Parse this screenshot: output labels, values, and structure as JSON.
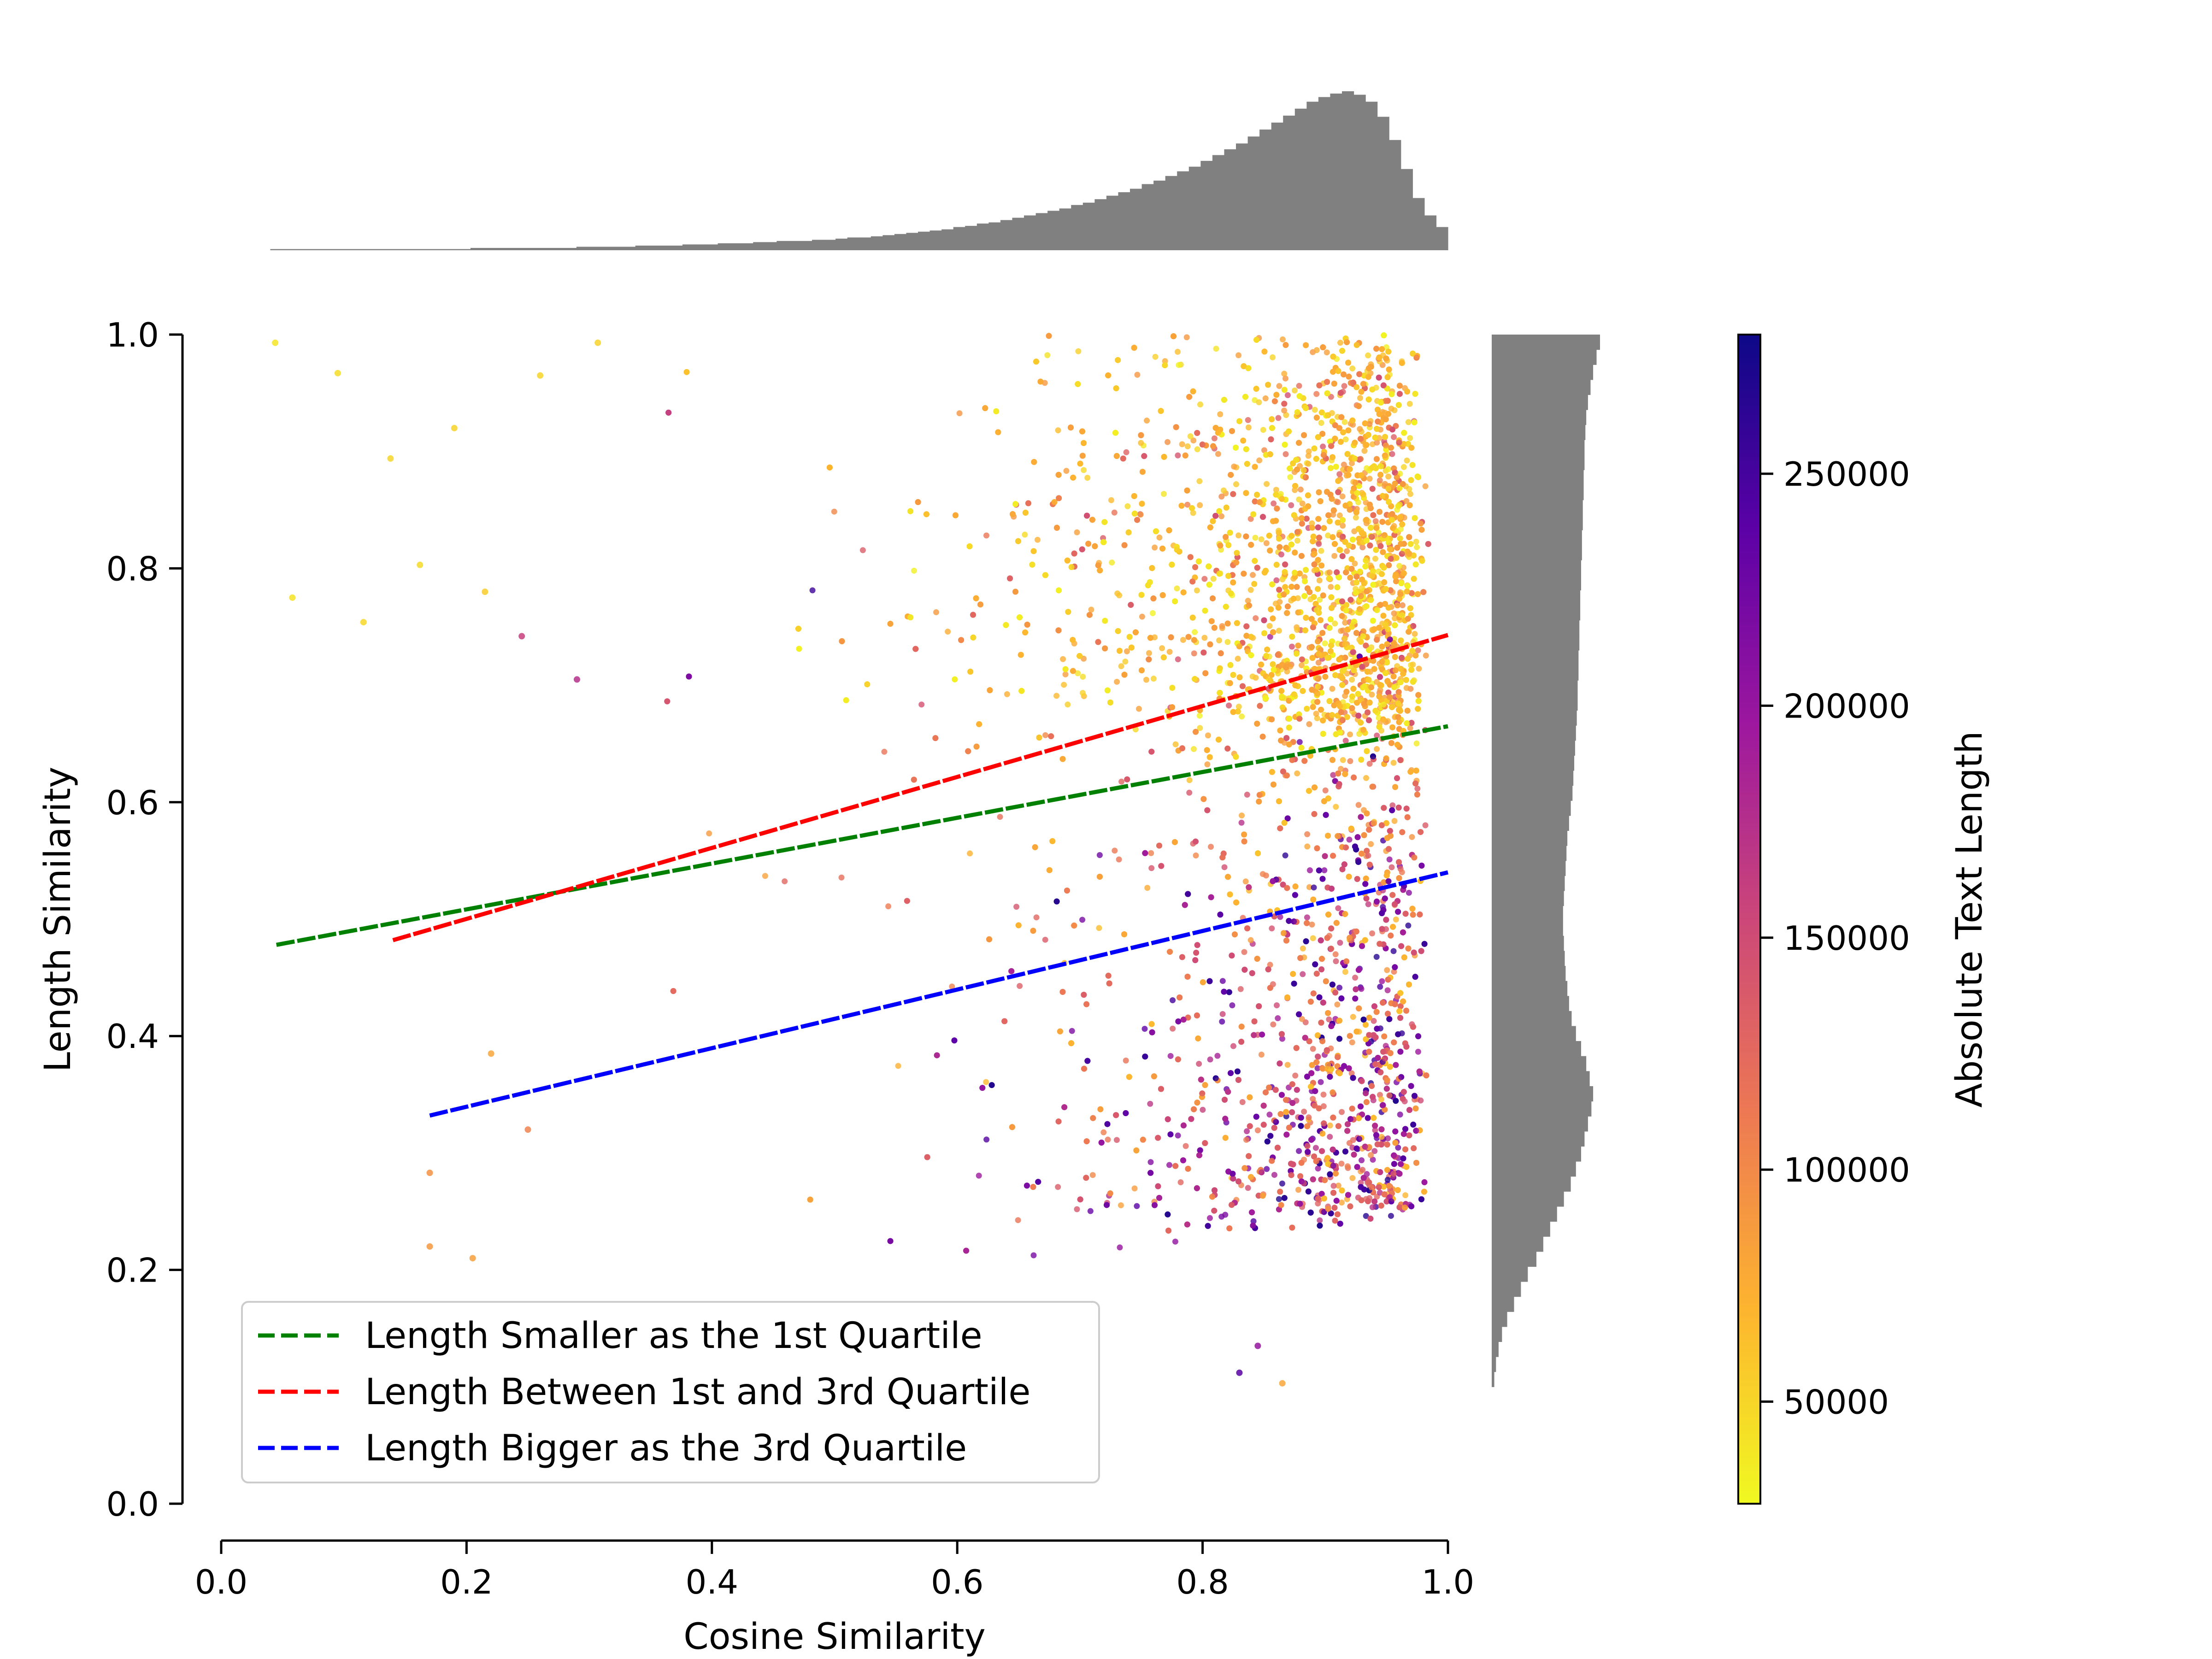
{
  "chart_data": {
    "type": "scatter",
    "title": "",
    "xlabel": "Cosine Similarity",
    "ylabel": "Length Similarity",
    "xlim": [
      0.0,
      1.0
    ],
    "ylim": [
      0.0,
      1.0
    ],
    "x_ticks": [
      "0.0",
      "0.2",
      "0.4",
      "0.6",
      "0.8",
      "1.0"
    ],
    "y_ticks": [
      "0.0",
      "0.2",
      "0.4",
      "0.6",
      "0.8",
      "1.0"
    ],
    "grid": false,
    "legend_position": "lower-left",
    "colorbar": {
      "label": "Absolute Text Length",
      "colormap": "plasma (reversed)",
      "range": [
        28000,
        280000
      ],
      "ticks": [
        50000,
        100000,
        150000,
        200000,
        250000
      ],
      "tick_labels": [
        "50000",
        "100000",
        "150000",
        "200000",
        "250000"
      ],
      "stops": [
        "#f0f921",
        "#fdb42f",
        "#ed7953",
        "#cc4778",
        "#9c179e",
        "#5c01a6",
        "#0d0887"
      ]
    },
    "series": [
      {
        "name": "Length Smaller as the 1st Quartile",
        "color": "#008000",
        "style": "dashed",
        "x": [
          0.045,
          1.0
        ],
        "y": [
          0.478,
          0.665
        ]
      },
      {
        "name": "Length Between 1st and 3rd Quartile",
        "color": "#ff0000",
        "style": "dashed",
        "x": [
          0.14,
          1.0
        ],
        "y": [
          0.482,
          0.743
        ]
      },
      {
        "name": "Length Bigger as the 3rd Quartile",
        "color": "#0000ff",
        "style": "dashed",
        "x": [
          0.17,
          1.0
        ],
        "y": [
          0.332,
          0.54
        ]
      }
    ],
    "scatter_sample": [
      {
        "x": 0.044,
        "y": 0.993,
        "len": 40000
      },
      {
        "x": 0.058,
        "y": 0.775,
        "len": 42000
      },
      {
        "x": 0.095,
        "y": 0.967,
        "len": 45000
      },
      {
        "x": 0.116,
        "y": 0.754,
        "len": 48000
      },
      {
        "x": 0.138,
        "y": 0.894,
        "len": 50000
      },
      {
        "x": 0.162,
        "y": 0.803,
        "len": 46000
      },
      {
        "x": 0.19,
        "y": 0.92,
        "len": 52000
      },
      {
        "x": 0.215,
        "y": 0.78,
        "len": 55000
      },
      {
        "x": 0.245,
        "y": 0.742,
        "len": 160000
      },
      {
        "x": 0.26,
        "y": 0.965,
        "len": 50000
      },
      {
        "x": 0.29,
        "y": 0.705,
        "len": 175000
      },
      {
        "x": 0.307,
        "y": 0.993,
        "len": 52000
      },
      {
        "x": 0.17,
        "y": 0.283,
        "len": 95000
      },
      {
        "x": 0.17,
        "y": 0.22,
        "len": 90000
      },
      {
        "x": 0.205,
        "y": 0.21,
        "len": 85000
      },
      {
        "x": 0.22,
        "y": 0.385,
        "len": 80000
      },
      {
        "x": 0.25,
        "y": 0.32,
        "len": 105000
      },
      {
        "x": 0.865,
        "y": 0.103,
        "len": 80000
      },
      {
        "x": 0.83,
        "y": 0.112,
        "len": 240000
      },
      {
        "x": 0.845,
        "y": 0.135,
        "len": 200000
      }
    ],
    "marginal_x_histogram": {
      "bin_edges": [
        0.04,
        1.0
      ],
      "counts": [
        1,
        1,
        1,
        1,
        1,
        1,
        1,
        1,
        1,
        1,
        1,
        1,
        1,
        1,
        1,
        1,
        1,
        2,
        2,
        2,
        2,
        2,
        2,
        2,
        2,
        2,
        3,
        3,
        3,
        3,
        3,
        4,
        4,
        4,
        4,
        5,
        5,
        5,
        6,
        6,
        6,
        7,
        7,
        8,
        8,
        8,
        9,
        9,
        10,
        11,
        11,
        12,
        13,
        14,
        15,
        16,
        17,
        18,
        20,
        21,
        23,
        24,
        26,
        28,
        30,
        32,
        34,
        36,
        39,
        41,
        44,
        47,
        50,
        53,
        57,
        60,
        64,
        68,
        72,
        77,
        82,
        87,
        92,
        98,
        104,
        110,
        116,
        122,
        128,
        132,
        135,
        137,
        134,
        128,
        115,
        95,
        70,
        45,
        30,
        20
      ]
    },
    "marginal_y_histogram": {
      "bin_edges": [
        0.1,
        1.0
      ],
      "counts": [
        3,
        5,
        8,
        12,
        18,
        26,
        34,
        42,
        52,
        60,
        68,
        76,
        84,
        92,
        98,
        104,
        108,
        112,
        116,
        118,
        114,
        110,
        104,
        98,
        93,
        90,
        88,
        86,
        85,
        84,
        83,
        83,
        84,
        85,
        86,
        87,
        88,
        90,
        92,
        94,
        95,
        96,
        97,
        98,
        99,
        100,
        100,
        101,
        101,
        102,
        102,
        103,
        103,
        104,
        104,
        105,
        105,
        106,
        106,
        107,
        107,
        108,
        108,
        109,
        110,
        112,
        115,
        118,
        122,
        126
      ]
    }
  }
}
